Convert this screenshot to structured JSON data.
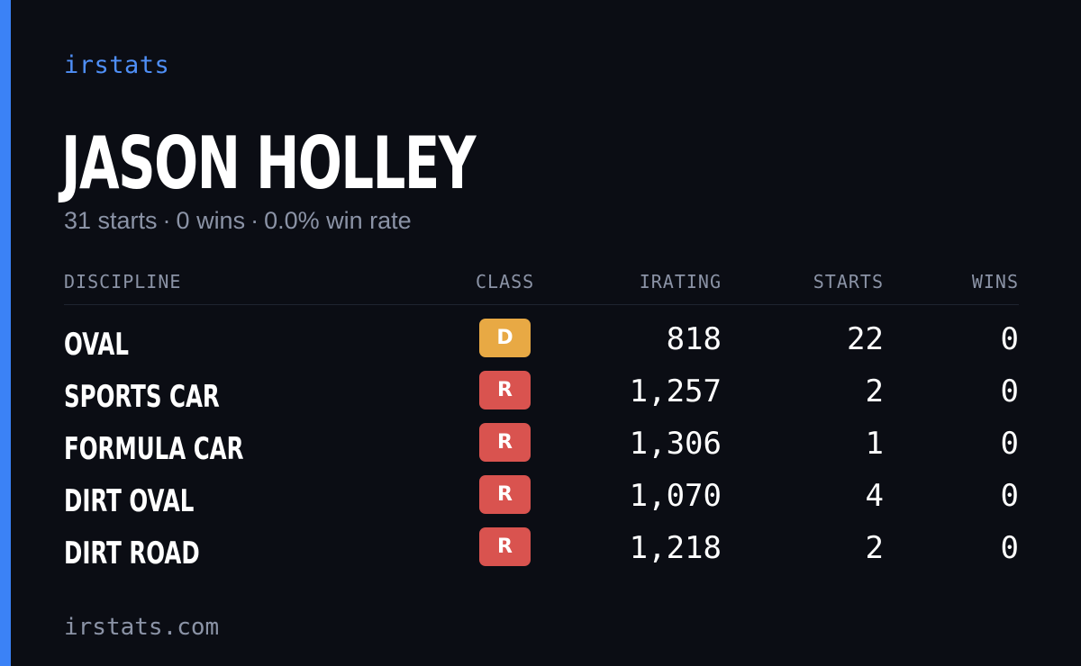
{
  "brand": "irstats",
  "driver": {
    "name": "JASON HOLLEY",
    "summary": {
      "starts": "31 starts",
      "wins": "0 wins",
      "win_rate": "0.0% win rate",
      "separator": "·"
    }
  },
  "table": {
    "headers": {
      "discipline": "DISCIPLINE",
      "class": "CLASS",
      "irating": "IRATING",
      "starts": "STARTS",
      "wins": "WINS"
    },
    "rows": [
      {
        "discipline": "OVAL",
        "class": "D",
        "class_color": "#e8a944",
        "irating": "818",
        "starts": "22",
        "wins": "0"
      },
      {
        "discipline": "SPORTS CAR",
        "class": "R",
        "class_color": "#d9534f",
        "irating": "1,257",
        "starts": "2",
        "wins": "0"
      },
      {
        "discipline": "FORMULA CAR",
        "class": "R",
        "class_color": "#d9534f",
        "irating": "1,306",
        "starts": "1",
        "wins": "0"
      },
      {
        "discipline": "DIRT OVAL",
        "class": "R",
        "class_color": "#d9534f",
        "irating": "1,070",
        "starts": "4",
        "wins": "0"
      },
      {
        "discipline": "DIRT ROAD",
        "class": "R",
        "class_color": "#d9534f",
        "irating": "1,218",
        "starts": "2",
        "wins": "0"
      }
    ]
  },
  "footer": "irstats.com",
  "colors": {
    "accent": "#3b82f6",
    "background": "#0b0d14",
    "muted_text": "#8b93a6"
  }
}
